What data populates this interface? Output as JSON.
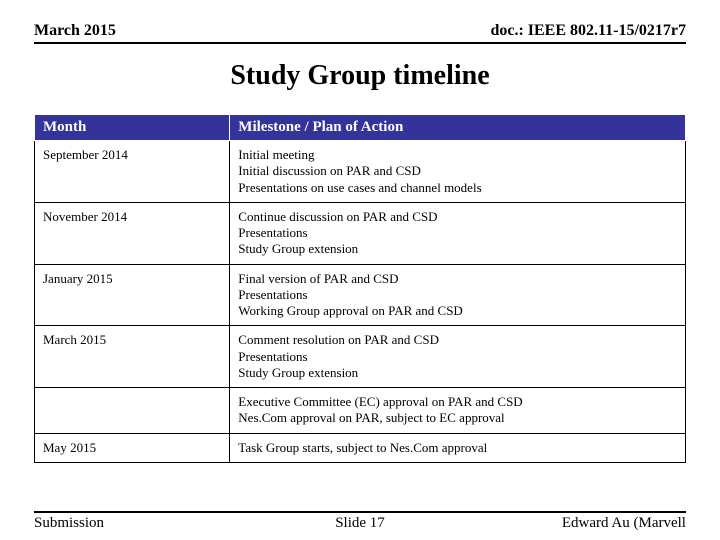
{
  "header": {
    "left": "March 2015",
    "right": "doc.: IEEE 802.11-15/0217r7"
  },
  "title": "Study Group timeline",
  "table": {
    "header_bg": "#333399",
    "header_fg": "#ffffff",
    "columns": [
      "Month",
      "Milestone / Plan of Action"
    ],
    "rows": [
      {
        "month": "September 2014",
        "lines": [
          "Initial meeting",
          "Initial discussion on PAR and CSD",
          "Presentations on use cases and channel models"
        ]
      },
      {
        "month": "November 2014",
        "lines": [
          "Continue discussion on PAR and CSD",
          "Presentations",
          "Study Group extension"
        ]
      },
      {
        "month": "January 2015",
        "lines": [
          "Final version of PAR and CSD",
          "Presentations",
          "Working Group approval on PAR and CSD"
        ]
      },
      {
        "month": "March 2015",
        "lines": [
          "Comment resolution on PAR and CSD",
          "Presentations",
          "Study Group extension"
        ]
      },
      {
        "month": "",
        "lines": [
          "Executive Committee (EC) approval on PAR and CSD",
          "Nes.Com approval on PAR, subject to EC approval"
        ]
      },
      {
        "month": "May 2015",
        "lines": [
          "Task Group starts, subject to Nes.Com approval"
        ]
      }
    ]
  },
  "footer": {
    "left": "Submission",
    "center": "Slide 17",
    "right": "Edward Au (Marvell"
  }
}
